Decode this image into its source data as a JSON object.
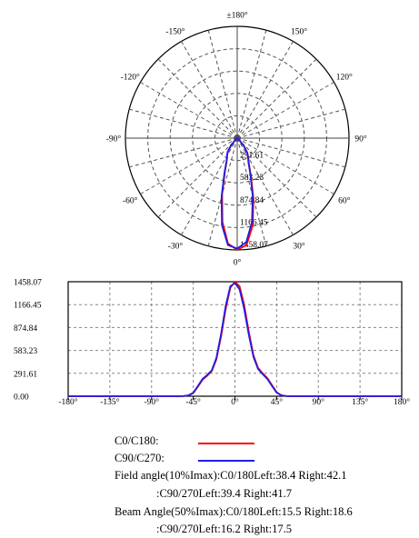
{
  "chart_data": [
    {
      "type": "polar",
      "angle_labels": [
        {
          "angle": 180,
          "label": "±180°"
        },
        {
          "angle": 150,
          "label": "150°"
        },
        {
          "angle": -150,
          "label": "-150°"
        },
        {
          "angle": 120,
          "label": "120°"
        },
        {
          "angle": -120,
          "label": "-120°"
        },
        {
          "angle": 90,
          "label": "90°"
        },
        {
          "angle": -90,
          "label": "-90°"
        },
        {
          "angle": 60,
          "label": "60°"
        },
        {
          "angle": -60,
          "label": "-60°"
        },
        {
          "angle": 30,
          "label": "30°"
        },
        {
          "angle": -30,
          "label": "-30°"
        },
        {
          "angle": 0,
          "label": "0°"
        }
      ],
      "radial_labels": [
        "291.61",
        "583.23",
        "874.84",
        "1166.45",
        "1458.07"
      ],
      "rmax": 1458.07,
      "grid": true,
      "series": [
        {
          "color": "#ff0000",
          "points": [
            [
              -90,
              0
            ],
            [
              -60,
              0
            ],
            [
              -55,
              3
            ],
            [
              -50,
              10
            ],
            [
              -45,
              40
            ],
            [
              -40,
              120
            ],
            [
              -35,
              210
            ],
            [
              -30,
              260
            ],
            [
              -25,
              320
            ],
            [
              -20,
              470
            ],
            [
              -15,
              760
            ],
            [
              -10,
              1110
            ],
            [
              -5,
              1380
            ],
            [
              0,
              1458
            ],
            [
              5,
              1400
            ],
            [
              10,
              1160
            ],
            [
              15,
              820
            ],
            [
              20,
              520
            ],
            [
              25,
              360
            ],
            [
              30,
              290
            ],
            [
              35,
              230
            ],
            [
              40,
              140
            ],
            [
              45,
              50
            ],
            [
              50,
              12
            ],
            [
              55,
              3
            ],
            [
              60,
              0
            ],
            [
              90,
              0
            ]
          ]
        },
        {
          "color": "#1e1ee6",
          "points": [
            [
              -90,
              0
            ],
            [
              -60,
              0
            ],
            [
              -55,
              3
            ],
            [
              -50,
              12
            ],
            [
              -45,
              45
            ],
            [
              -40,
              130
            ],
            [
              -35,
              220
            ],
            [
              -30,
              270
            ],
            [
              -25,
              330
            ],
            [
              -20,
              490
            ],
            [
              -15,
              790
            ],
            [
              -10,
              1150
            ],
            [
              -5,
              1400
            ],
            [
              0,
              1440
            ],
            [
              5,
              1360
            ],
            [
              10,
              1110
            ],
            [
              15,
              780
            ],
            [
              20,
              500
            ],
            [
              25,
              345
            ],
            [
              30,
              280
            ],
            [
              35,
              220
            ],
            [
              40,
              130
            ],
            [
              45,
              45
            ],
            [
              50,
              12
            ],
            [
              55,
              3
            ],
            [
              60,
              0
            ],
            [
              90,
              0
            ]
          ]
        }
      ]
    },
    {
      "type": "line",
      "x_ticks": [
        -180,
        -135,
        -90,
        -45,
        0,
        45,
        90,
        135,
        180
      ],
      "x_tick_labels": [
        "-180°",
        "-135°",
        "-90°",
        "-45°",
        "0°",
        "45°",
        "90°",
        "135°",
        "180°"
      ],
      "y_ticks": [
        0,
        291.61,
        583.23,
        874.84,
        1166.45,
        1458.07
      ],
      "y_tick_labels": [
        "0.00",
        "291.61",
        "583.23",
        "874.84",
        "1166.45",
        "1458.07"
      ],
      "xlim": [
        -180,
        180
      ],
      "ylim": [
        0,
        1458.07
      ],
      "grid": true,
      "series": [
        {
          "name": "C0/C180",
          "color": "#ff0000",
          "x": [
            -180,
            -60,
            -55,
            -50,
            -45,
            -40,
            -35,
            -30,
            -25,
            -20,
            -15,
            -10,
            -5,
            0,
            5,
            10,
            15,
            20,
            25,
            30,
            35,
            40,
            45,
            50,
            55,
            60,
            180
          ],
          "values": [
            0,
            0,
            3,
            10,
            40,
            120,
            210,
            260,
            320,
            470,
            760,
            1110,
            1380,
            1458,
            1400,
            1160,
            820,
            520,
            360,
            290,
            230,
            140,
            50,
            12,
            3,
            0,
            0
          ]
        },
        {
          "name": "C90/C270",
          "color": "#1e1ee6",
          "x": [
            -180,
            -60,
            -55,
            -50,
            -45,
            -40,
            -35,
            -30,
            -25,
            -20,
            -15,
            -10,
            -5,
            0,
            5,
            10,
            15,
            20,
            25,
            30,
            35,
            40,
            45,
            50,
            55,
            60,
            180
          ],
          "values": [
            0,
            0,
            3,
            12,
            45,
            130,
            220,
            270,
            330,
            490,
            790,
            1150,
            1400,
            1440,
            1360,
            1110,
            780,
            500,
            345,
            280,
            220,
            130,
            45,
            12,
            3,
            0,
            0
          ]
        }
      ]
    }
  ],
  "legend": {
    "c0_label": "C0/C180:",
    "c90_label": "C90/C270:",
    "c0_color": "#ff0000",
    "c90_color": "#1e1ee6"
  },
  "info": {
    "field_line1": "Field angle(10%Imax):C0/180Left:38.4 Right:42.1",
    "field_line2": ":C90/270Left:39.4 Right:41.7",
    "beam_line1": "Beam Angle(50%Imax):C0/180Left:15.5 Right:18.6",
    "beam_line2": ":C90/270Left:16.2 Right:17.5"
  }
}
